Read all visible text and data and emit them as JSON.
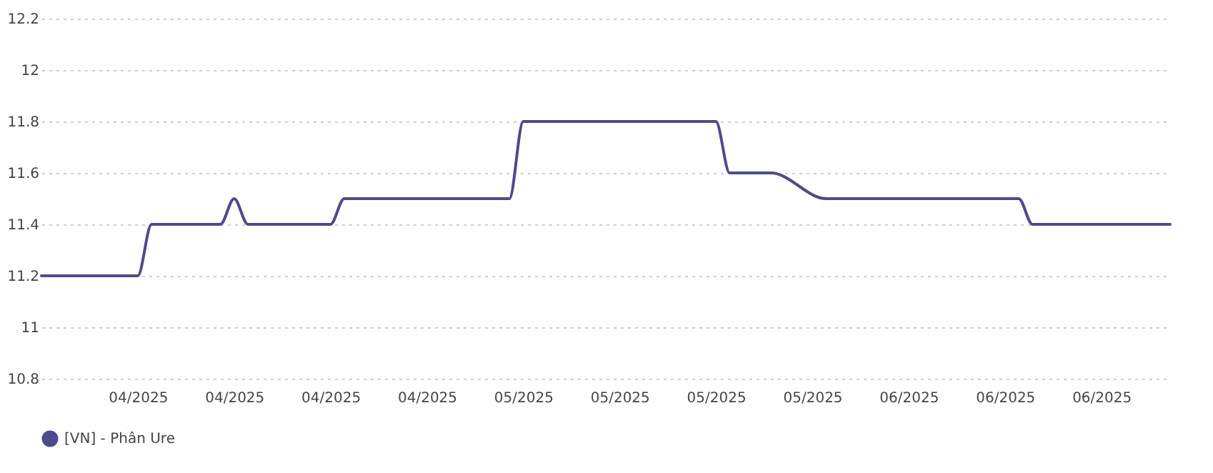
{
  "chart_data": {
    "type": "line",
    "x": [
      "2025-03-31",
      "2025-04-07",
      "2025-04-08",
      "2025-04-13",
      "2025-04-14",
      "2025-04-15",
      "2025-04-21",
      "2025-04-22",
      "2025-05-04",
      "2025-05-05",
      "2025-05-19",
      "2025-05-20",
      "2025-05-23",
      "2025-05-27",
      "2025-06-10",
      "2025-06-11",
      "2025-06-21"
    ],
    "series": [
      {
        "name": "[VN] - Phân Ure",
        "color": "#4e4b8c",
        "values": [
          11.2,
          11.2,
          11.4,
          11.4,
          11.5,
          11.4,
          11.4,
          11.5,
          11.5,
          11.8,
          11.8,
          11.6,
          11.6,
          11.5,
          11.5,
          11.4,
          11.4
        ]
      }
    ],
    "xlim": [
      "2025-03-31",
      "2025-06-21"
    ],
    "xticks": [
      {
        "value": "2025-04-07",
        "label": "04/2025"
      },
      {
        "value": "2025-04-14",
        "label": "04/2025"
      },
      {
        "value": "2025-04-21",
        "label": "04/2025"
      },
      {
        "value": "2025-04-28",
        "label": "04/2025"
      },
      {
        "value": "2025-05-05",
        "label": "05/2025"
      },
      {
        "value": "2025-05-12",
        "label": "05/2025"
      },
      {
        "value": "2025-05-19",
        "label": "05/2025"
      },
      {
        "value": "2025-05-26",
        "label": "05/2025"
      },
      {
        "value": "2025-06-02",
        "label": "06/2025"
      },
      {
        "value": "2025-06-09",
        "label": "06/2025"
      },
      {
        "value": "2025-06-16",
        "label": "06/2025"
      }
    ],
    "ylim": [
      10.8,
      12.2
    ],
    "yticks": [
      10.8,
      11,
      11.2,
      11.4,
      11.6,
      11.8,
      12,
      12.2
    ],
    "grid": "y",
    "legend": "bottom",
    "marker": "none",
    "line_style": "solid"
  }
}
